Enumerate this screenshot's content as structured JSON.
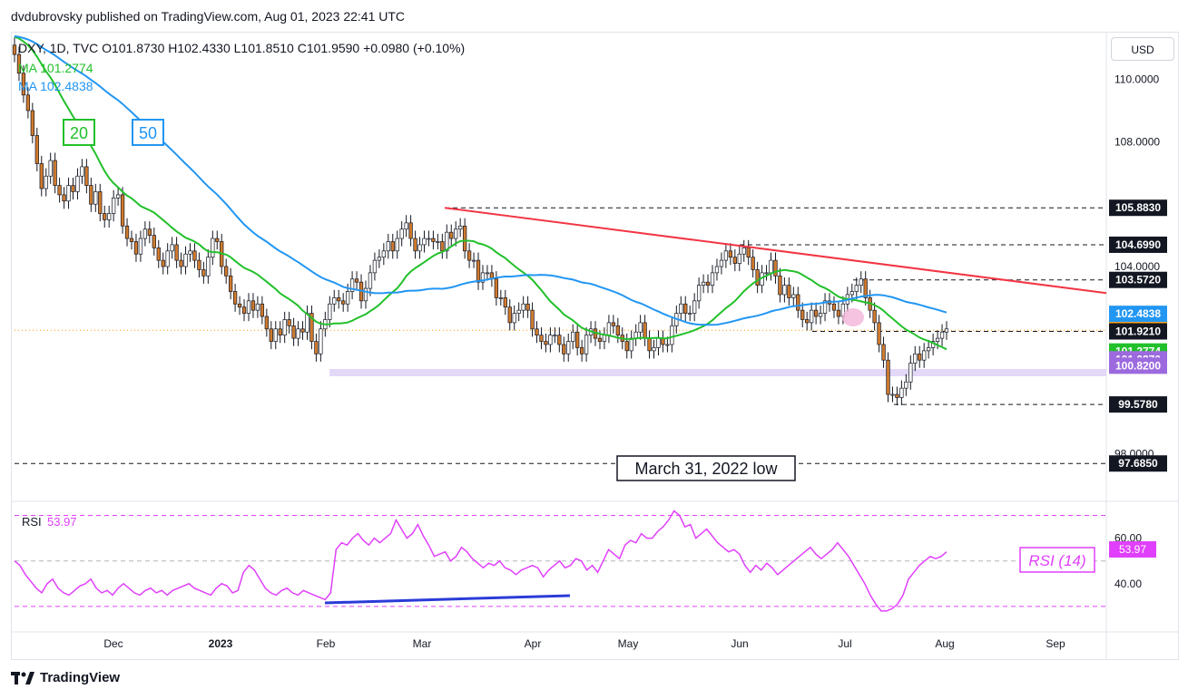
{
  "header": {
    "publisher": "dvdubrovsky published on TradingView.com, Aug 01, 2023 22:41 UTC"
  },
  "legend": {
    "symbol_line": "DXY, 1D, TVC  O101.8730  H102.4330  L101.8510  C101.9590  +0.0980 (+0.10%)",
    "ma20_line": "MA  101.2774",
    "ma50_line": "MA  102.4838",
    "ma20_box": "20",
    "ma50_box": "50"
  },
  "currency_button": "USD",
  "annotations": {
    "march_low": "March 31, 2022 low",
    "rsi_box": "RSI (14)"
  },
  "footer": {
    "brand": "TradingView"
  },
  "colors": {
    "ma20": "#22c02b",
    "ma50": "#2196f3",
    "trendline": "#f23645",
    "rsi": "#e040fb",
    "candle_up": "#ffffff",
    "candle_down": "#d07a2e",
    "divergence": "#2b3cd8"
  },
  "chart_data": [
    {
      "type": "candlestick",
      "title": "",
      "y_axis_labels": [
        "110.0000",
        "108.0000",
        "104.0000",
        "98.0000"
      ],
      "ylim": [
        96.5,
        111.5
      ],
      "x_tick_labels": [
        "Dec",
        "2023",
        "Feb",
        "Mar",
        "Apr",
        "May",
        "Jun",
        "Jul",
        "Aug",
        "Sep"
      ],
      "price_labels": [
        {
          "value": 105.883,
          "text": "105.8830",
          "color": "#131722"
        },
        {
          "value": 104.699,
          "text": "104.6990",
          "color": "#131722"
        },
        {
          "value": 103.572,
          "text": "103.5720",
          "color": "#131722"
        },
        {
          "value": 102.4838,
          "text": "102.4838",
          "color": "#2196f3"
        },
        {
          "value": 101.959,
          "text": "101.9590",
          "color": "#ff9800"
        },
        {
          "value": 101.921,
          "text": "101.9210",
          "color": "#131722"
        },
        {
          "value": 101.2774,
          "text": "101.2774",
          "color": "#22c02b"
        },
        {
          "value": 101.027,
          "text": "101.0270",
          "color": "#9c6ade"
        },
        {
          "value": 100.82,
          "text": "100.8200",
          "color": "#9c6ade"
        },
        {
          "value": 99.578,
          "text": "99.5780",
          "color": "#131722"
        },
        {
          "value": 97.685,
          "text": "97.6850",
          "color": "#131722"
        }
      ],
      "closes": [
        110.8,
        110.2,
        109.5,
        109.0,
        108.2,
        107.3,
        106.5,
        106.9,
        107.4,
        106.6,
        106.3,
        106.1,
        106.6,
        106.4,
        106.9,
        107.2,
        106.6,
        106.0,
        106.4,
        105.7,
        105.5,
        105.7,
        106.2,
        106.3,
        105.3,
        104.9,
        104.8,
        104.4,
        104.9,
        105.2,
        105.0,
        104.6,
        104.2,
        104.0,
        104.5,
        104.7,
        104.2,
        104.0,
        104.4,
        104.5,
        104.2,
        103.9,
        103.7,
        104.3,
        104.9,
        104.8,
        104.0,
        103.7,
        103.2,
        102.8,
        102.7,
        102.5,
        102.9,
        102.6,
        102.8,
        102.4,
        102.0,
        101.6,
        102.0,
        101.8,
        102.3,
        102.1,
        101.7,
        102.0,
        101.9,
        102.5,
        101.6,
        101.2,
        102.0,
        102.3,
        102.8,
        103.0,
        102.9,
        102.8,
        103.2,
        103.6,
        103.5,
        102.9,
        103.3,
        103.8,
        104.2,
        104.3,
        104.5,
        104.8,
        104.5,
        104.9,
        105.2,
        105.4,
        104.9,
        104.5,
        104.7,
        104.9,
        104.9,
        104.8,
        104.8,
        104.5,
        105.1,
        104.9,
        105.2,
        105.3,
        104.5,
        104.2,
        104.2,
        103.5,
        103.8,
        103.8,
        103.6,
        103.0,
        103.0,
        102.7,
        102.2,
        102.5,
        102.6,
        102.8,
        102.6,
        102.0,
        101.8,
        101.6,
        101.5,
        101.8,
        101.8,
        101.5,
        101.2,
        101.6,
        101.9,
        101.4,
        101.2,
        101.8,
        102.0,
        101.7,
        101.6,
        101.8,
        102.2,
        102.1,
        101.8,
        101.6,
        101.3,
        101.7,
        101.9,
        102.2,
        101.7,
        101.3,
        101.4,
        101.7,
        101.5,
        101.5,
        102.1,
        102.5,
        102.8,
        102.5,
        102.5,
        102.9,
        103.4,
        103.5,
        103.4,
        103.8,
        104.0,
        104.2,
        104.5,
        104.3,
        104.1,
        104.4,
        104.6,
        104.3,
        103.9,
        103.4,
        103.8,
        103.8,
        104.2,
        103.7,
        103.1,
        103.4,
        103.0,
        103.1,
        102.6,
        102.3,
        102.2,
        102.6,
        102.4,
        102.5,
        102.9,
        102.8,
        102.6,
        102.4,
        102.8,
        103.1,
        103.2,
        103.4,
        103.6,
        103.0,
        102.6,
        102.2,
        101.5,
        101.0,
        99.9,
        99.9,
        99.8,
        100.1,
        100.3,
        100.9,
        101.2,
        101.0,
        101.3,
        101.4,
        101.6,
        101.7,
        101.9,
        102.0
      ]
    },
    {
      "type": "line",
      "title": "RSI",
      "value_label": "53.97",
      "y_axis_labels": [
        "60.00",
        "40.00"
      ],
      "ylim": [
        20,
        75
      ],
      "levels": [
        70,
        50,
        30
      ],
      "values": [
        50,
        48,
        44,
        41,
        38,
        36,
        40,
        42,
        38,
        36,
        35,
        37,
        39,
        40,
        42,
        38,
        36,
        37,
        35,
        38,
        40,
        38,
        36,
        35,
        37,
        38,
        36,
        37,
        35,
        37,
        38,
        39,
        40,
        38,
        37,
        36,
        35,
        38,
        40,
        39,
        36,
        37,
        45,
        48,
        46,
        42,
        38,
        36,
        35,
        37,
        38,
        36,
        35,
        37,
        36,
        35,
        34,
        33,
        36,
        55,
        58,
        57,
        60,
        62,
        59,
        57,
        60,
        58,
        60,
        62,
        68,
        64,
        60,
        62,
        66,
        61,
        57,
        52,
        53,
        54,
        50,
        52,
        56,
        54,
        51,
        49,
        47,
        49,
        48,
        50,
        47,
        46,
        44,
        46,
        47,
        48,
        47,
        43,
        46,
        48,
        50,
        47,
        48,
        51,
        50,
        46,
        48,
        45,
        50,
        55,
        53,
        51,
        57,
        59,
        58,
        62,
        60,
        60,
        63,
        65,
        68,
        72,
        70,
        65,
        66,
        60,
        62,
        64,
        61,
        58,
        56,
        54,
        55,
        53,
        48,
        45,
        48,
        46,
        49,
        47,
        44,
        46,
        48,
        50,
        52,
        54,
        56,
        53,
        51,
        53,
        55,
        58,
        55,
        52,
        48,
        44,
        40,
        35,
        31,
        28,
        28,
        29,
        31,
        35,
        42,
        45,
        48,
        50,
        52,
        51,
        52,
        54
      ]
    }
  ]
}
